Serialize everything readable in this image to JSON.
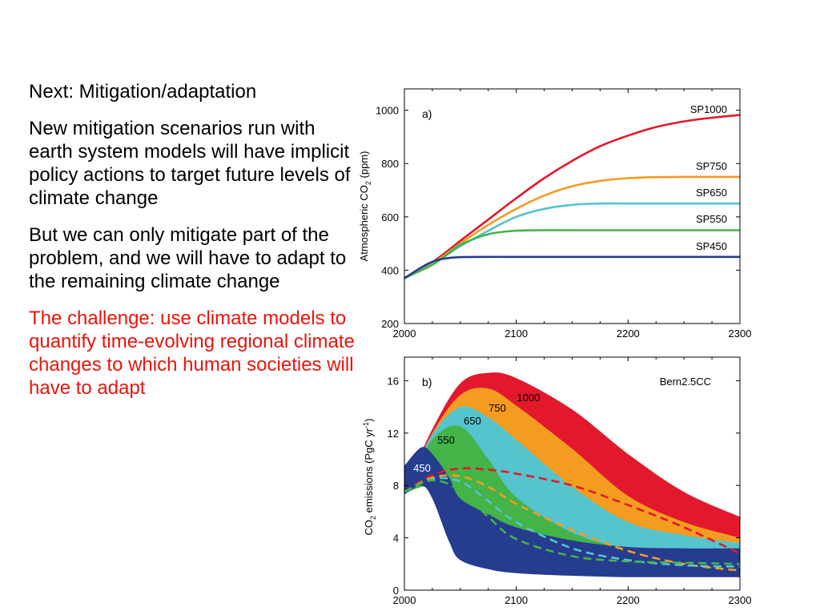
{
  "slide": {
    "heading": "Next:  Mitigation/adaptation",
    "para1": "New mitigation scenarios run with earth system models will have implicit policy actions to target future levels of climate change",
    "para2": "But we can only mitigate part of the problem, and we will have to adapt to the remaining climate change",
    "challenge": "The challenge:  use climate models to quantify time-evolving regional climate changes to which human societies will have to adapt"
  },
  "colors": {
    "text": "#000000",
    "challenge": "#e8140c",
    "sp1000": "#e3182d",
    "sp750": "#f39c1f",
    "sp650": "#55c4cc",
    "sp550": "#44b449",
    "sp450": "#253c8f"
  },
  "chart_data": [
    {
      "type": "line",
      "panel_label": "a)",
      "ylabel": "Atmospheric CO",
      "ylabel_sub": "2",
      "ylabel_tail": " (ppm)",
      "xlim": [
        2000,
        2300
      ],
      "ylim": [
        200,
        1080
      ],
      "xticks": [
        2000,
        2100,
        2200,
        2300
      ],
      "yticks": [
        200,
        400,
        600,
        800,
        1000
      ],
      "series": [
        {
          "name": "SP1000",
          "color": "#e3182d",
          "x": [
            2000,
            2025,
            2050,
            2075,
            2100,
            2125,
            2150,
            2175,
            2200,
            2225,
            2250,
            2275,
            2300
          ],
          "y": [
            370,
            430,
            510,
            590,
            670,
            745,
            810,
            865,
            905,
            937,
            958,
            972,
            982
          ]
        },
        {
          "name": "SP750",
          "color": "#f39c1f",
          "x": [
            2000,
            2025,
            2050,
            2075,
            2100,
            2125,
            2150,
            2175,
            2200,
            2225,
            2250,
            2275,
            2300
          ],
          "y": [
            370,
            425,
            500,
            570,
            630,
            680,
            715,
            735,
            745,
            749,
            750,
            750,
            750
          ]
        },
        {
          "name": "SP650",
          "color": "#55c4cc",
          "x": [
            2000,
            2025,
            2050,
            2075,
            2100,
            2125,
            2150,
            2175,
            2200,
            2250,
            2300
          ],
          "y": [
            370,
            422,
            490,
            548,
            600,
            630,
            645,
            650,
            650,
            650,
            650
          ]
        },
        {
          "name": "SP550",
          "color": "#44b449",
          "x": [
            2000,
            2025,
            2040,
            2050,
            2075,
            2100,
            2125,
            2150,
            2200,
            2250,
            2300
          ],
          "y": [
            370,
            420,
            465,
            495,
            535,
            548,
            550,
            550,
            550,
            550,
            550
          ]
        },
        {
          "name": "SP450",
          "color": "#253c8f",
          "x": [
            2000,
            2015,
            2025,
            2035,
            2050,
            2075,
            2100,
            2150,
            2200,
            2250,
            2300
          ],
          "y": [
            370,
            410,
            432,
            443,
            449,
            450,
            450,
            450,
            450,
            450,
            450
          ]
        }
      ]
    },
    {
      "type": "area",
      "panel_label": "b)",
      "model_label": "Bern2.5CC",
      "ylabel": "CO",
      "ylabel_sub": "2",
      "ylabel_mid": " emissions (PgC yr",
      "ylabel_sup": "-1",
      "ylabel_tail": ")",
      "xlim": [
        2000,
        2300
      ],
      "ylim": [
        0,
        17.8
      ],
      "xticks": [
        2000,
        2100,
        2200,
        2300
      ],
      "yticks": [
        0,
        4,
        8,
        12,
        16
      ],
      "bands": [
        {
          "name": "1000",
          "color": "#e3182d",
          "x": [
            2000,
            2025,
            2050,
            2075,
            2100,
            2150,
            2200,
            2250,
            2300
          ],
          "upper": [
            7.6,
            12.3,
            15.8,
            16.6,
            16.2,
            13.8,
            10.4,
            7.5,
            5.6
          ],
          "lower": [
            7.4,
            8.8,
            9.2,
            8.9,
            8.5,
            7.7,
            6.1,
            4.6,
            3.2
          ]
        },
        {
          "name": "750",
          "color": "#f39c1f",
          "x": [
            2000,
            2025,
            2050,
            2075,
            2100,
            2150,
            2200,
            2250,
            2300
          ],
          "upper": [
            7.6,
            12.0,
            14.9,
            15.4,
            14.1,
            10.8,
            7.2,
            5.2,
            4.0
          ],
          "lower": [
            7.4,
            8.6,
            8.8,
            8.0,
            7.1,
            5.8,
            4.0,
            2.4,
            1.5
          ]
        },
        {
          "name": "650",
          "color": "#55c4cc",
          "x": [
            2000,
            2025,
            2050,
            2075,
            2100,
            2150,
            2200,
            2250,
            2300
          ],
          "upper": [
            7.6,
            11.9,
            14.0,
            13.2,
            11.5,
            7.9,
            5.2,
            4.2,
            3.6
          ],
          "lower": [
            7.4,
            8.4,
            8.3,
            7.0,
            6.1,
            4.3,
            2.8,
            2.0,
            1.4
          ]
        },
        {
          "name": "550",
          "color": "#44b449",
          "x": [
            2000,
            2025,
            2050,
            2075,
            2100,
            2150,
            2200,
            2250,
            2300
          ],
          "upper": [
            7.6,
            11.5,
            12.5,
            10.0,
            7.1,
            4.4,
            3.2,
            3.0,
            2.9
          ],
          "lower": [
            7.4,
            7.9,
            6.0,
            3.8,
            2.9,
            2.0,
            1.6,
            1.2,
            1.0
          ]
        },
        {
          "name": "450",
          "color": "#253c8f",
          "x": [
            2000,
            2015,
            2025,
            2040,
            2050,
            2075,
            2100,
            2150,
            2200,
            2250,
            2300
          ],
          "upper": [
            9.5,
            10.9,
            10.4,
            8.6,
            7.0,
            5.8,
            4.8,
            3.8,
            3.3,
            3.2,
            3.2
          ],
          "lower": [
            7.3,
            8.0,
            7.0,
            3.7,
            2.3,
            1.6,
            1.3,
            1.1,
            1.0,
            1.0,
            1.0
          ]
        }
      ],
      "dashed": [
        {
          "name": "1000",
          "color": "#e3182d",
          "x": [
            2000,
            2025,
            2050,
            2075,
            2100,
            2150,
            2200,
            2250,
            2300
          ],
          "y": [
            7.5,
            8.8,
            9.3,
            9.2,
            8.9,
            8.0,
            6.5,
            4.8,
            2.8
          ]
        },
        {
          "name": "750",
          "color": "#f39c1f",
          "x": [
            2000,
            2025,
            2050,
            2075,
            2100,
            2150,
            2200,
            2250,
            2300
          ],
          "y": [
            7.5,
            8.6,
            8.7,
            7.9,
            6.6,
            4.6,
            3.0,
            2.0,
            1.5
          ]
        },
        {
          "name": "650",
          "color": "#55c4cc",
          "x": [
            2000,
            2025,
            2050,
            2075,
            2100,
            2150,
            2200,
            2250,
            2300
          ],
          "y": [
            7.5,
            8.5,
            8.3,
            6.8,
            5.2,
            3.2,
            2.3,
            1.9,
            1.8
          ]
        },
        {
          "name": "550",
          "color": "#44b449",
          "x": [
            2000,
            2025,
            2050,
            2075,
            2100,
            2150,
            2200,
            2250,
            2300
          ],
          "y": [
            7.5,
            8.4,
            7.6,
            5.6,
            3.9,
            2.6,
            2.2,
            2.1,
            2.0
          ]
        }
      ]
    }
  ]
}
